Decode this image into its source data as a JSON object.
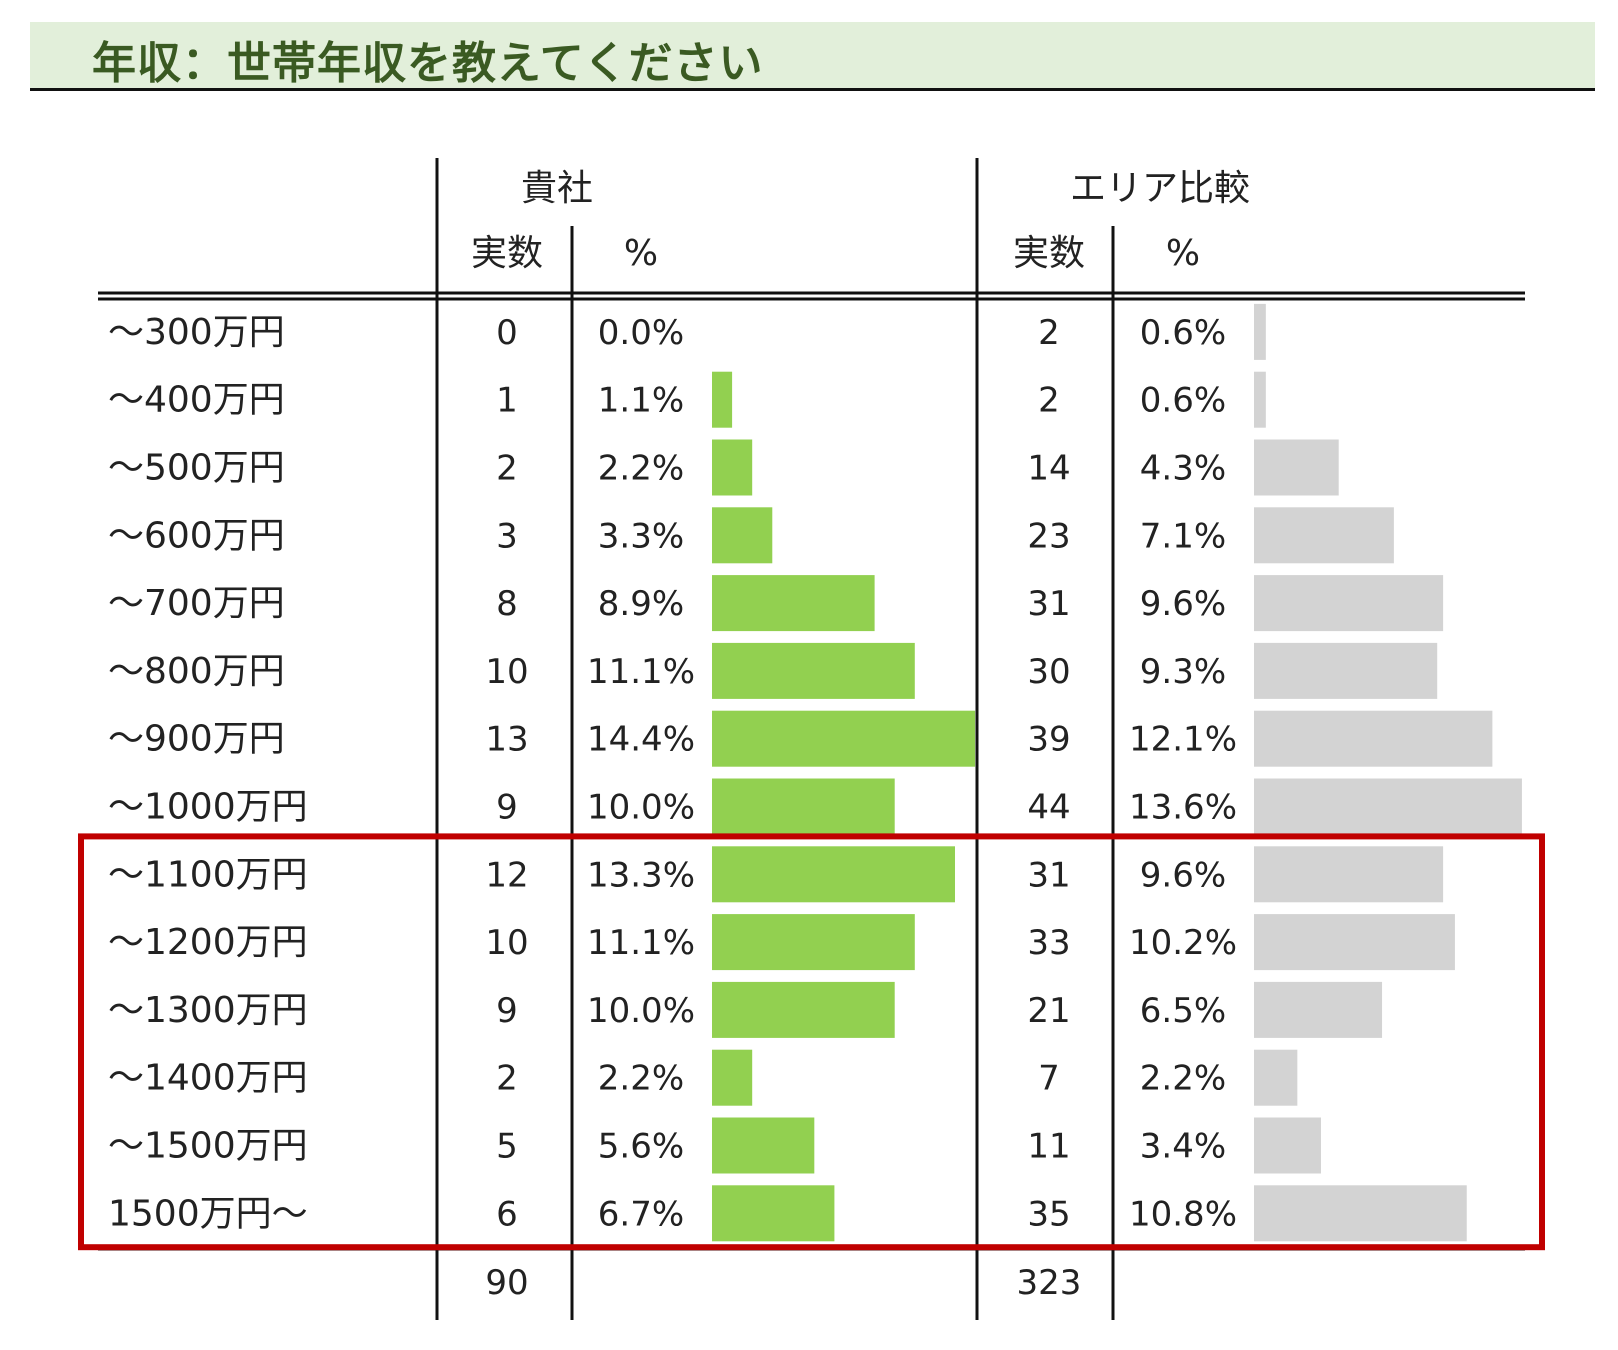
{
  "page_title": "年収：世帯年収を教えてください",
  "colors": {
    "company_bar": "#92d050",
    "area_bar": "#d3d3d3",
    "highlight": "#c00000",
    "title_band": "#e2efda",
    "title_text": "#3a5a22"
  },
  "headers": {
    "company": "貴社",
    "area": "エリア比較",
    "count": "実数",
    "percent": "%"
  },
  "chart_data": {
    "type": "bar",
    "orientation": "horizontal",
    "categories": [
      "～300万円",
      "～400万円",
      "～500万円",
      "～600万円",
      "～700万円",
      "～800万円",
      "～900万円",
      "～1000万円",
      "～1100万円",
      "～1200万円",
      "～1300万円",
      "～1400万円",
      "～1500万円",
      "1500万円～"
    ],
    "series": [
      {
        "name": "貴社",
        "counts": [
          0,
          1,
          2,
          3,
          8,
          10,
          13,
          9,
          12,
          10,
          9,
          2,
          5,
          6
        ],
        "percent_labels": [
          "0.0%",
          "1.1%",
          "2.2%",
          "3.3%",
          "8.9%",
          "11.1%",
          "14.4%",
          "10.0%",
          "13.3%",
          "11.1%",
          "10.0%",
          "2.2%",
          "5.6%",
          "6.7%"
        ],
        "values": [
          0.0,
          1.1,
          2.2,
          3.3,
          8.9,
          11.1,
          14.4,
          10.0,
          13.3,
          11.1,
          10.0,
          2.2,
          5.6,
          6.7
        ],
        "total": "90"
      },
      {
        "name": "エリア比較",
        "counts": [
          2,
          2,
          14,
          23,
          31,
          30,
          39,
          44,
          31,
          33,
          21,
          7,
          11,
          35
        ],
        "percent_labels": [
          "0.6%",
          "0.6%",
          "4.3%",
          "7.1%",
          "9.6%",
          "9.3%",
          "12.1%",
          "13.6%",
          "9.6%",
          "10.2%",
          "6.5%",
          "2.2%",
          "3.4%",
          "10.8%"
        ],
        "values": [
          0.6,
          0.6,
          4.3,
          7.1,
          9.6,
          9.3,
          12.1,
          13.6,
          9.6,
          10.2,
          6.5,
          2.2,
          3.4,
          10.8
        ],
        "total": "323"
      }
    ],
    "highlighted_categories": [
      "～1100万円",
      "～1200万円",
      "～1300万円",
      "～1400万円",
      "～1500万円",
      "1500万円～"
    ]
  }
}
